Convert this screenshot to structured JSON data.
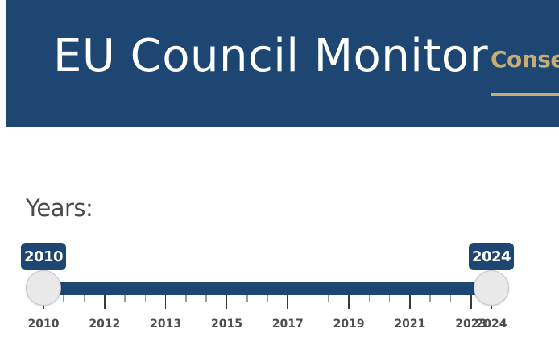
{
  "header": {
    "title": "EU Council Monitor",
    "nav_item": "Conse"
  },
  "filter": {
    "label": "Years:",
    "range_min": 2010,
    "range_max": 2024,
    "selected_from": "2010",
    "selected_to": "2024",
    "axis_labels": [
      "2010",
      "2012",
      "2013",
      "2015",
      "2017",
      "2019",
      "2021",
      "2023",
      "2024"
    ]
  },
  "colors": {
    "header_bg": "#1d4673",
    "accent_gold": "#c7ad74",
    "slider_fill": "#1d4673"
  }
}
